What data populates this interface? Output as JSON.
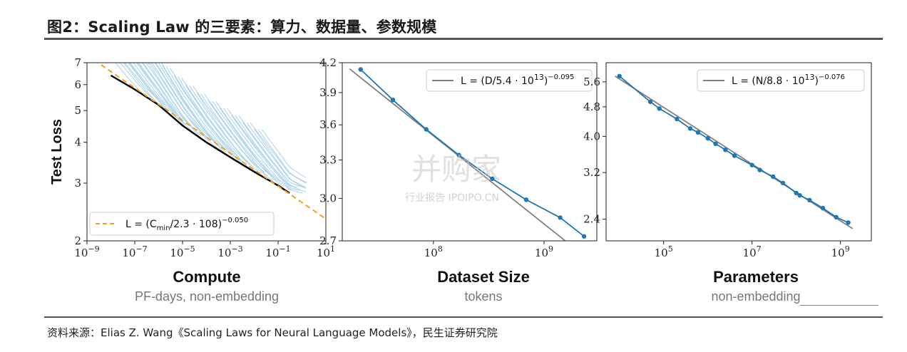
{
  "figure_title": "图2：Scaling Law 的三要素：算力、数据量、参数规模",
  "source": "资料来源：Elias Z. Wang《Scaling Laws for Neural Language Models》，民生证券研究院",
  "watermark": {
    "main": "并购家",
    "sub": "行业报告 IPOIPO.CN"
  },
  "colors": {
    "points": "#1f77b4",
    "fit": "#808080",
    "envelope": "#000000",
    "compute_fit": "#f0a020",
    "curves": "#9ecae1"
  },
  "chart_data": [
    {
      "type": "line",
      "xlabel": "Compute",
      "xsub": "PF-days, non-embedding",
      "ylabel": "Test Loss",
      "x_scale": "log",
      "y_scale": "log",
      "xlim": [
        1e-09,
        10
      ],
      "ylim": [
        2,
        7
      ],
      "x_ticks": [
        1e-09,
        1e-07,
        1e-05,
        0.001,
        0.1,
        10
      ],
      "x_tick_labels": [
        [
          "10",
          "−9"
        ],
        [
          "10",
          "−7"
        ],
        [
          "10",
          "−5"
        ],
        [
          "10",
          "−3"
        ],
        [
          "10",
          "−1"
        ],
        [
          "10",
          "1"
        ]
      ],
      "y_ticks": [
        2,
        3,
        4,
        5,
        6,
        7
      ],
      "y_tick_labels": [
        "2",
        "3",
        "4",
        "5",
        "6",
        "7"
      ],
      "legend": {
        "position": "lower-left",
        "label_main": "L = (C",
        "label_sub": "min",
        "label_rest": "/2.3 · 10",
        "label_exp_base": "8",
        "label_exp": "−0.050"
      },
      "fit": {
        "type": "power",
        "coef": 230000000.0,
        "exponent": -0.05
      },
      "envelope": {
        "x": [
          1e-08,
          1e-07,
          1e-06,
          1e-05,
          0.0001,
          0.001,
          0.01,
          0.1,
          0.3
        ],
        "y": [
          6.4,
          5.8,
          5.2,
          4.5,
          4.0,
          3.6,
          3.25,
          2.95,
          2.8
        ]
      }
    },
    {
      "type": "line",
      "xlabel": "Dataset Size",
      "xsub": "tokens",
      "x_scale": "log",
      "y_scale": "log",
      "xlim": [
        15000000.0,
        3000000000.0
      ],
      "ylim": [
        2.7,
        4.2
      ],
      "x_ticks": [
        100000000.0,
        1000000000.0
      ],
      "x_tick_labels": [
        [
          "10",
          "8"
        ],
        [
          "10",
          "9"
        ]
      ],
      "y_ticks": [
        2.7,
        3.0,
        3.3,
        3.6,
        3.9,
        4.2
      ],
      "y_tick_labels": [
        "2.7",
        "3.0",
        "3.3",
        "3.6",
        "3.9",
        "4.2"
      ],
      "legend": {
        "position": "upper-right",
        "label_main": "L = (D/5.4 · 10",
        "label_exp_base": "13",
        "label_exp": "−0.095"
      },
      "fit": {
        "type": "power",
        "coef": 54000000000000.0,
        "exponent": -0.095
      },
      "series": [
        {
          "x": [
            22000000.0,
            43000000.0,
            86000000.0,
            170000000.0,
            340000000.0,
            690000000.0,
            1400000000.0,
            2300000000.0
          ],
          "y": [
            4.13,
            3.83,
            3.56,
            3.34,
            3.15,
            2.99,
            2.86,
            2.73
          ]
        }
      ]
    },
    {
      "type": "line",
      "xlabel": "Parameters",
      "xsub": "non-embedding",
      "x_scale": "log",
      "y_scale": "log",
      "xlim": [
        5000.0,
        5000000000.0
      ],
      "ylim": [
        2.1,
        6.3
      ],
      "x_ticks": [
        100000.0,
        10000000.0,
        1000000000.0
      ],
      "x_tick_labels": [
        [
          "10",
          "5"
        ],
        [
          "10",
          "7"
        ],
        [
          "10",
          "9"
        ]
      ],
      "y_ticks": [
        2.4,
        3.2,
        4.0,
        4.8,
        5.6
      ],
      "y_tick_labels": [
        "2.4",
        "3.2",
        "4.0",
        "4.8",
        "5.6"
      ],
      "legend": {
        "position": "upper-right",
        "label_main": "L = (N/8.8 · 10",
        "label_exp_base": "13",
        "label_exp": "−0.076"
      },
      "fit": {
        "type": "power",
        "coef": 88000000000000.0,
        "exponent": -0.076
      },
      "series": [
        {
          "x": [
            10000.0,
            50000.0,
            80000.0,
            200000.0,
            400000.0,
            600000.0,
            1000000.0,
            1500000.0,
            2500000.0,
            4000000.0,
            10000000.0,
            15000000.0,
            30000000.0,
            50000000.0,
            100000000.0,
            120000000.0,
            200000000.0,
            400000000.0,
            800000000.0,
            1500000000.0
          ],
          "y": [
            5.8,
            4.95,
            4.75,
            4.45,
            4.2,
            4.1,
            3.95,
            3.82,
            3.68,
            3.55,
            3.35,
            3.25,
            3.12,
            3.0,
            2.82,
            2.78,
            2.7,
            2.57,
            2.43,
            2.35
          ]
        }
      ]
    }
  ]
}
